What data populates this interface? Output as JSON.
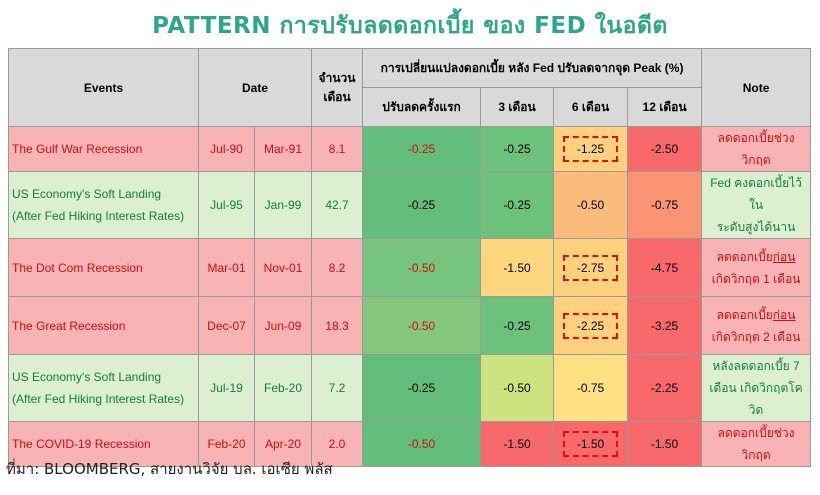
{
  "title": "PATTERN การปรับลดดอกเบี้ย ของ FED ในอดีต",
  "headers": {
    "events": "Events",
    "date": "Date",
    "months_1": "จำนวน",
    "months_2": "เดือน",
    "change_group": "การเปลี่ยนแปลงดอกเบี้ย หลัง Fed ปรับลดจากจุด Peak (%)",
    "first_cut": "ปรับลดครั้งแรก",
    "m3": "3 เดือน",
    "m6": "6 เดือน",
    "m12": "12 เดือน",
    "note": "Note"
  },
  "colors": {
    "title": "#2ea68a",
    "red_text": "#cc1010",
    "green_text": "#118040",
    "red_row_bg": "#f8b4b4",
    "green_row_bg": "#dcefd0",
    "header_bg": "#d9d9d9"
  },
  "rows": [
    {
      "event_1": "The Gulf War Recession",
      "event_2": "",
      "start": "Jul-90",
      "end": "Mar-91",
      "months": "8.1",
      "first": "-0.25",
      "m3": "-0.25",
      "m6": "-1.25",
      "m12": "-2.50",
      "note_1": "ลดดอกเบี้ยช่วงวิกฤต",
      "note_2": "",
      "style": "red",
      "cell_colors": [
        "#63be7b",
        "#6cc17b",
        "#fdd17f",
        "#f8696b"
      ]
    },
    {
      "event_1": "US Economy's Soft Landing",
      "event_2": "(After Fed Hiking Interest Rates)",
      "start": "Jul-95",
      "end": "Jan-99",
      "months": "42.7",
      "first": "-0.25",
      "m3": "-0.25",
      "m6": "-0.50",
      "m12": "-0.75",
      "note_1": "Fed คงดอกเบี้ยไว้ใน",
      "note_2": "ระดับสูงได้นาน",
      "style": "green",
      "cell_colors": [
        "#63be7b",
        "#6cc17b",
        "#fbbb7c",
        "#fa9473"
      ]
    },
    {
      "event_1": "The Dot Com Recession",
      "event_2": "",
      "start": "Mar-01",
      "end": "Nov-01",
      "months": "8.2",
      "first": "-0.50",
      "m3": "-1.50",
      "m6": "-2.75",
      "m12": "-4.75",
      "note_1": "ลดดอกเบี้ย",
      "note_1u": "ก่อน",
      "note_2": "เกิดวิกฤต 1 เดือน",
      "style": "red",
      "cell_colors": [
        "#76c47d",
        "#fed680",
        "#fdd27f",
        "#f8696b"
      ]
    },
    {
      "event_1": "The Great Recession",
      "event_2": "",
      "start": "Dec-07",
      "end": "Jun-09",
      "months": "18.3",
      "first": "-0.50",
      "m3": "-0.25",
      "m6": "-2.25",
      "m12": "-3.25",
      "note_1": "ลดดอกเบี้ย",
      "note_1u": "ก่อน",
      "note_2": "เกิดวิกฤต 2 เดือน",
      "style": "red",
      "cell_colors": [
        "#85c87d",
        "#6cc17b",
        "#fdd17f",
        "#f8696b"
      ]
    },
    {
      "event_1": "US Economy's Soft Landing",
      "event_2": "(After Fed Hiking Interest Rates)",
      "start": "Jul-19",
      "end": "Feb-20",
      "months": "7.2",
      "first": "-0.25",
      "m3": "-0.50",
      "m6": "-0.75",
      "m12": "-2.25",
      "note_1": "หลังลดดอกเบี้ย 7",
      "note_2": "เดือน เกิดวิกฤตโควิด",
      "style": "green",
      "cell_colors": [
        "#63be7b",
        "#cde37f",
        "#ffe083",
        "#f8696b"
      ]
    },
    {
      "event_1": "The COVID-19 Recession",
      "event_2": "",
      "start": "Feb-20",
      "end": "Apr-20",
      "months": "2.0",
      "first": "-0.50",
      "m3": "-1.50",
      "m6": "-1.50",
      "m12": "-1.50",
      "note_1": "ลดดอกเบี้ยช่วงวิกฤต",
      "note_2": "",
      "style": "red",
      "cell_colors": [
        "#63be7b",
        "#f8696b",
        "#f8696b",
        "#f8696b"
      ]
    }
  ],
  "source": "ที่มา: BLOOMBERG, สายงานวิจัย บล. เอเซีย พลัส"
}
